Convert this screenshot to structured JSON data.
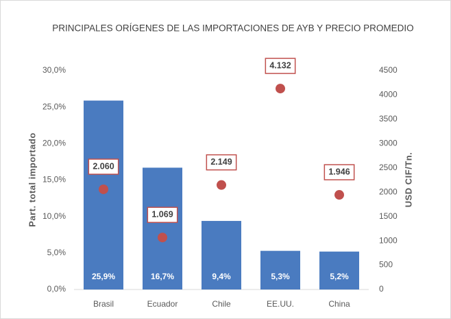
{
  "chart_data": {
    "type": "bar",
    "title": "PRINCIPALES ORÍGENES DE LAS IMPORTACIONES DE AYB Y PRECIO PROMEDIO",
    "y_label": "Part. total importado",
    "y2_label": "USD CIF/Tn.",
    "categories": [
      "Brasil",
      "Ecuador",
      "Chile",
      "EE.UU.",
      "China"
    ],
    "series": [
      {
        "type": "bar",
        "color": "#4a7bc0",
        "values": [
          25.9,
          16.7,
          9.4,
          5.3,
          5.2
        ],
        "value_labels": [
          "25,9%",
          "16,7%",
          "9,4%",
          "5,3%",
          "5,2%"
        ]
      },
      {
        "type": "scatter",
        "axis": "y2",
        "color": "#c0504d",
        "values": [
          2060,
          1069,
          2149,
          4132,
          1946
        ],
        "value_labels": [
          "2.060",
          "1.069",
          "2.149",
          "4.132",
          "1.946"
        ]
      }
    ],
    "ylim": [
      0,
      30
    ],
    "yticks": [
      {
        "value": 0,
        "label": "0,0%"
      },
      {
        "value": 5,
        "label": "5,0%"
      },
      {
        "value": 10,
        "label": "10,0%"
      },
      {
        "value": 15,
        "label": "15,0%"
      },
      {
        "value": 20,
        "label": "20,0%"
      },
      {
        "value": 25,
        "label": "25,0%"
      },
      {
        "value": 30,
        "label": "30,0%"
      }
    ],
    "y2lim": [
      0,
      4500
    ],
    "y2ticks": [
      0,
      500,
      1000,
      1500,
      2000,
      2500,
      3000,
      3500,
      4000,
      4500
    ]
  }
}
